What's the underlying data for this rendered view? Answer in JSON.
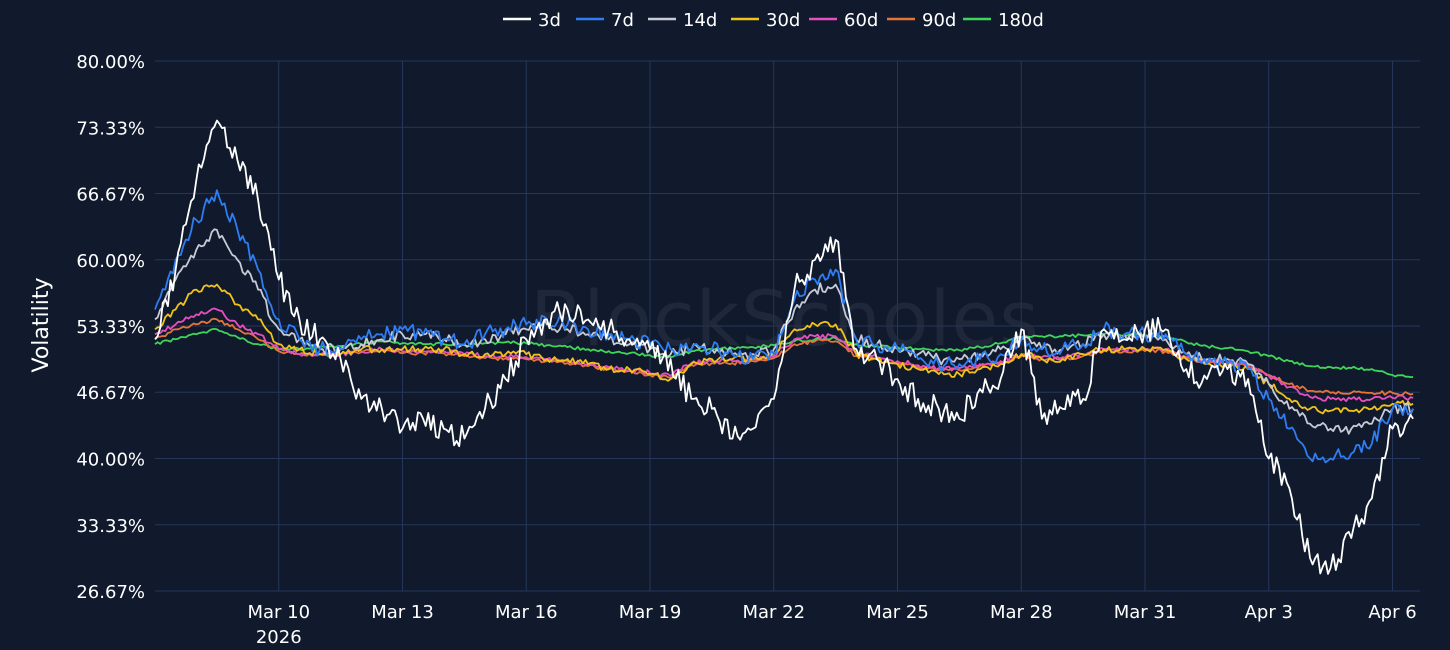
{
  "watermark": "BlockScholes",
  "chart_data": {
    "type": "line",
    "ylabel": "Volatility",
    "ylim": [
      26.67,
      80.0
    ],
    "y_ticks": [
      "80.00%",
      "73.33%",
      "66.67%",
      "60.00%",
      "53.33%",
      "46.67%",
      "40.00%",
      "33.33%",
      "26.67%"
    ],
    "y_tick_values": [
      80.0,
      73.33,
      66.67,
      60.0,
      53.33,
      46.67,
      40.0,
      33.33,
      26.67
    ],
    "x_ticks": [
      {
        "label": "Mar 10",
        "sub": "2026",
        "date": "2026-03-10"
      },
      {
        "label": "Mar 13",
        "sub": "",
        "date": "2026-03-13"
      },
      {
        "label": "Mar 16",
        "sub": "",
        "date": "2026-03-16"
      },
      {
        "label": "Mar 19",
        "sub": "",
        "date": "2026-03-19"
      },
      {
        "label": "Mar 22",
        "sub": "",
        "date": "2026-03-22"
      },
      {
        "label": "Mar 25",
        "sub": "",
        "date": "2026-03-25"
      },
      {
        "label": "Mar 28",
        "sub": "",
        "date": "2026-03-28"
      },
      {
        "label": "Mar 31",
        "sub": "",
        "date": "2026-03-31"
      },
      {
        "label": "Apr 3",
        "sub": "",
        "date": "2026-04-03"
      },
      {
        "label": "Apr 6",
        "sub": "",
        "date": "2026-04-06"
      }
    ],
    "xlim": [
      "2026-03-07T00:00",
      "2026-04-06T16:00"
    ],
    "grid": true,
    "legend_position": "top-center",
    "x": [
      "2026-03-07T00:00",
      "2026-03-07T12:00",
      "2026-03-08T00:00",
      "2026-03-08T12:00",
      "2026-03-09T00:00",
      "2026-03-09T12:00",
      "2026-03-10T00:00",
      "2026-03-10T12:00",
      "2026-03-11T00:00",
      "2026-03-11T12:00",
      "2026-03-12T00:00",
      "2026-03-12T12:00",
      "2026-03-13T00:00",
      "2026-03-13T12:00",
      "2026-03-14T00:00",
      "2026-03-14T12:00",
      "2026-03-15T00:00",
      "2026-03-15T12:00",
      "2026-03-16T00:00",
      "2026-03-16T12:00",
      "2026-03-17T00:00",
      "2026-03-17T12:00",
      "2026-03-18T00:00",
      "2026-03-18T12:00",
      "2026-03-19T00:00",
      "2026-03-19T12:00",
      "2026-03-20T00:00",
      "2026-03-20T12:00",
      "2026-03-21T00:00",
      "2026-03-21T12:00",
      "2026-03-22T00:00",
      "2026-03-22T12:00",
      "2026-03-23T00:00",
      "2026-03-23T12:00",
      "2026-03-24T00:00",
      "2026-03-24T12:00",
      "2026-03-25T00:00",
      "2026-03-25T12:00",
      "2026-03-26T00:00",
      "2026-03-26T12:00",
      "2026-03-27T00:00",
      "2026-03-27T12:00",
      "2026-03-28T00:00",
      "2026-03-28T12:00",
      "2026-03-29T00:00",
      "2026-03-29T12:00",
      "2026-03-30T00:00",
      "2026-03-30T12:00",
      "2026-03-31T00:00",
      "2026-03-31T12:00",
      "2026-04-01T00:00",
      "2026-04-01T12:00",
      "2026-04-02T00:00",
      "2026-04-02T12:00",
      "2026-04-03T00:00",
      "2026-04-03T12:00",
      "2026-04-04T00:00",
      "2026-04-04T12:00",
      "2026-04-05T00:00",
      "2026-04-05T12:00",
      "2026-04-06T00:00",
      "2026-04-06T12:00"
    ],
    "series": [
      {
        "name": "3d",
        "color": "#ffffff",
        "values": [
          52.0,
          59.0,
          68.0,
          74.0,
          70.0,
          66.0,
          58.0,
          54.0,
          52.0,
          50.0,
          46.0,
          45.0,
          43.0,
          44.0,
          43.0,
          42.0,
          45.0,
          48.0,
          52.0,
          54.0,
          55.0,
          54.0,
          53.0,
          52.0,
          51.0,
          50.0,
          46.0,
          45.0,
          42.0,
          43.0,
          46.0,
          57.0,
          60.0,
          62.0,
          51.0,
          50.0,
          48.0,
          46.0,
          45.0,
          44.0,
          47.0,
          48.0,
          53.0,
          44.0,
          45.0,
          46.0,
          53.0,
          52.0,
          53.0,
          53.0,
          49.0,
          48.0,
          49.0,
          48.0,
          40.0,
          37.0,
          30.0,
          29.0,
          32.0,
          36.0,
          43.0,
          44.0
        ]
      },
      {
        "name": "7d",
        "color": "#2f7df3",
        "values": [
          55.0,
          60.0,
          64.0,
          67.0,
          63.0,
          59.0,
          54.0,
          52.0,
          51.0,
          51.0,
          52.0,
          52.5,
          53.0,
          52.5,
          52.0,
          51.5,
          52.5,
          53.0,
          53.5,
          54.0,
          53.5,
          53.0,
          52.5,
          52.0,
          51.5,
          51.0,
          51.0,
          51.0,
          50.5,
          50.0,
          50.5,
          56.0,
          58.0,
          59.0,
          52.0,
          51.5,
          51.0,
          50.0,
          49.5,
          49.5,
          50.0,
          50.5,
          52.0,
          51.0,
          51.0,
          51.5,
          53.0,
          52.5,
          52.5,
          52.5,
          50.5,
          49.5,
          49.5,
          49.0,
          46.0,
          43.0,
          40.0,
          40.0,
          40.5,
          41.5,
          45.0,
          45.0
        ]
      },
      {
        "name": "14d",
        "color": "#c6cbd6",
        "values": [
          54.0,
          58.0,
          61.0,
          63.0,
          60.0,
          57.0,
          53.0,
          52.0,
          51.0,
          51.0,
          51.5,
          52.0,
          52.5,
          52.5,
          52.0,
          51.5,
          52.0,
          52.5,
          53.0,
          53.5,
          53.0,
          52.5,
          52.0,
          51.5,
          51.0,
          50.5,
          51.0,
          51.0,
          50.5,
          50.5,
          51.0,
          55.0,
          57.0,
          57.5,
          52.0,
          51.5,
          51.0,
          50.5,
          50.0,
          50.0,
          50.5,
          51.0,
          52.0,
          51.0,
          51.0,
          51.5,
          52.5,
          52.5,
          52.5,
          52.0,
          50.5,
          50.0,
          50.0,
          49.5,
          47.5,
          45.0,
          43.5,
          43.0,
          43.0,
          43.5,
          45.0,
          45.0
        ]
      },
      {
        "name": "30d",
        "color": "#f2c21b",
        "values": [
          53.0,
          55.0,
          57.0,
          57.5,
          55.5,
          54.0,
          51.5,
          51.0,
          50.5,
          50.5,
          51.0,
          51.0,
          51.0,
          51.0,
          51.0,
          50.5,
          50.5,
          50.5,
          50.5,
          50.0,
          50.0,
          49.5,
          49.0,
          49.0,
          48.5,
          48.0,
          49.5,
          50.0,
          50.0,
          50.0,
          50.5,
          53.0,
          53.5,
          53.5,
          50.5,
          50.0,
          49.5,
          49.0,
          48.5,
          48.5,
          49.0,
          49.5,
          50.5,
          50.0,
          50.0,
          50.5,
          51.0,
          51.0,
          51.0,
          51.0,
          50.0,
          49.5,
          49.5,
          49.0,
          47.5,
          46.0,
          45.0,
          44.8,
          44.8,
          45.0,
          45.5,
          45.5
        ]
      },
      {
        "name": "60d",
        "color": "#e64fbd",
        "values": [
          52.5,
          53.5,
          54.5,
          55.0,
          53.5,
          52.5,
          51.0,
          50.5,
          50.5,
          50.5,
          50.8,
          51.0,
          50.8,
          50.8,
          50.8,
          50.5,
          50.3,
          50.3,
          50.2,
          50.0,
          49.8,
          49.5,
          49.2,
          49.0,
          48.6,
          48.3,
          49.6,
          49.8,
          49.8,
          50.0,
          50.3,
          52.0,
          52.3,
          52.3,
          50.5,
          50.2,
          49.8,
          49.4,
          49.1,
          49.1,
          49.5,
          49.8,
          50.5,
          50.2,
          50.2,
          50.5,
          51.0,
          51.0,
          51.0,
          51.0,
          50.2,
          49.8,
          49.7,
          49.4,
          48.3,
          47.2,
          46.2,
          46.0,
          46.0,
          46.0,
          46.1,
          46.1
        ]
      },
      {
        "name": "90d",
        "color": "#e6743a",
        "values": [
          52.0,
          53.0,
          53.5,
          54.0,
          53.0,
          52.0,
          50.8,
          50.5,
          50.5,
          50.5,
          50.7,
          50.9,
          50.6,
          50.6,
          50.6,
          50.3,
          50.1,
          50.1,
          50.0,
          49.8,
          49.6,
          49.3,
          49.0,
          48.8,
          48.4,
          48.1,
          49.4,
          49.6,
          49.6,
          49.8,
          50.1,
          51.5,
          51.8,
          51.8,
          50.3,
          50.0,
          49.6,
          49.2,
          48.9,
          48.9,
          49.3,
          49.6,
          50.3,
          50.0,
          50.0,
          50.3,
          50.8,
          50.8,
          50.8,
          50.8,
          50.1,
          49.7,
          49.6,
          49.3,
          48.4,
          47.5,
          46.8,
          46.6,
          46.6,
          46.6,
          46.6,
          46.5
        ]
      },
      {
        "name": "180d",
        "color": "#3fd45a",
        "values": [
          51.5,
          52.0,
          52.5,
          53.0,
          52.2,
          51.5,
          51.0,
          51.0,
          51.2,
          51.3,
          51.5,
          51.8,
          51.6,
          51.5,
          51.5,
          51.4,
          51.6,
          51.7,
          51.6,
          51.4,
          51.2,
          51.0,
          50.8,
          50.6,
          50.4,
          50.2,
          50.8,
          51.0,
          51.1,
          51.2,
          51.4,
          51.8,
          52.0,
          52.1,
          51.5,
          51.3,
          51.2,
          51.0,
          50.9,
          50.9,
          51.2,
          51.6,
          52.2,
          52.3,
          52.3,
          52.4,
          52.5,
          52.4,
          52.4,
          52.3,
          51.7,
          51.3,
          51.1,
          50.8,
          50.3,
          49.8,
          49.3,
          49.2,
          49.1,
          49.0,
          48.4,
          48.2
        ]
      }
    ]
  }
}
